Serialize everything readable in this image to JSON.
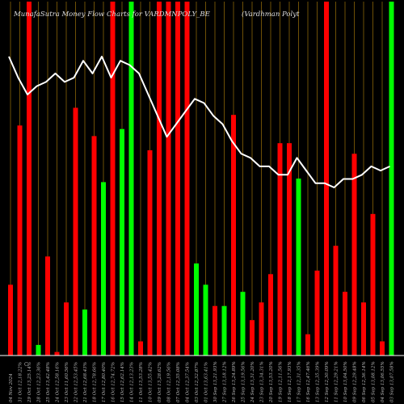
{
  "title_left": "MunafaSutra  Money Flow  Charts for VARDMNPOLY_BE",
  "title_right": "(Vardhman  Polyt",
  "footer_mark": "C",
  "chart_data": {
    "type": "bar",
    "title": "MunafaSutra Money Flow Charts for VARDMNPOLY_BE (Vardhman Polyt",
    "ylim": [
      0,
      100
    ],
    "categories": [
      "04 Nov 2024 ",
      "31 Oct 12,18.22%",
      "29 Oct 13,25.14%",
      "28 Oct 12,23.36%",
      "25 Oct 13,42.48%",
      "24 Oct 12,58.16%",
      "23 Oct 11,60.56%",
      "22 Oct 12,53.45%",
      "21 Oct 12,68.43%",
      "18 Oct 12,78.66%",
      "17 Oct 12,80.40%",
      "16 Oct 12,74.72%",
      "15 Oct 12,62.14%",
      "14 Oct 12,13.23%",
      "11 Oct 13,53.28%",
      "10 Oct 13,55.42%",
      "09 Oct 13,28.62%",
      "08 Oct 12,19.56%",
      "07 Oct 12,35.08%",
      "04 Oct 12,37.54%",
      "03 Oct 12,32.87%",
      "01 Oct 13,63.41%",
      "30 Sep 13,21.93%",
      "27 Sep 13,18.12%",
      "26 Sep 13,24.89%",
      "25 Sep 13,19.56%",
      "24 Sep 13,31.20%",
      "23 Sep 13,34.31%",
      "20 Sep 13,53.20%",
      "19 Sep 12,11.56%",
      "18 Sep 12,17.93%",
      "17 Sep 12,31.35%",
      "16 Sep 12,47.46%",
      "13 Sep 12,35.39%",
      "12 Sep 12,30.09%",
      "11 Sep 12,29.21%",
      "10 Sep 13,04.50%",
      "09 Sep 12,29.48%",
      "06 Sep 12,36.14%",
      "05 Sep 13,08.12%",
      "04 Sep 13,06.55%",
      "03 Sep 13,07.58%"
    ],
    "series": [
      {
        "values": [
          20,
          65,
          100,
          3,
          28,
          1,
          15,
          70,
          13,
          62,
          49,
          100,
          64,
          100,
          4,
          58,
          100,
          100,
          100,
          100,
          26,
          20,
          14,
          14,
          68,
          18,
          10,
          15,
          23,
          60,
          60,
          50,
          6,
          24,
          100,
          31,
          18,
          57,
          15,
          40,
          4,
          100
        ],
        "colors": [
          "red",
          "red",
          "red",
          "green",
          "red",
          "red",
          "red",
          "red",
          "green",
          "red",
          "green",
          "red",
          "green",
          "green",
          "red",
          "red",
          "red",
          "red",
          "red",
          "red",
          "green",
          "green",
          "red",
          "green",
          "red",
          "green",
          "red",
          "red",
          "red",
          "red",
          "red",
          "green",
          "red",
          "red",
          "red",
          "red",
          "red",
          "red",
          "red",
          "red",
          "red",
          "green"
        ]
      },
      {
        "values": [
          100,
          95,
          91,
          93,
          94,
          96,
          94,
          95,
          99,
          96,
          100,
          95,
          99,
          98,
          96,
          91,
          86,
          81,
          84,
          87,
          90,
          89,
          86,
          84,
          80,
          77,
          76,
          74,
          74,
          72,
          72,
          76,
          73,
          70,
          70,
          69,
          71,
          71,
          72,
          74,
          73,
          74
        ]
      }
    ]
  }
}
